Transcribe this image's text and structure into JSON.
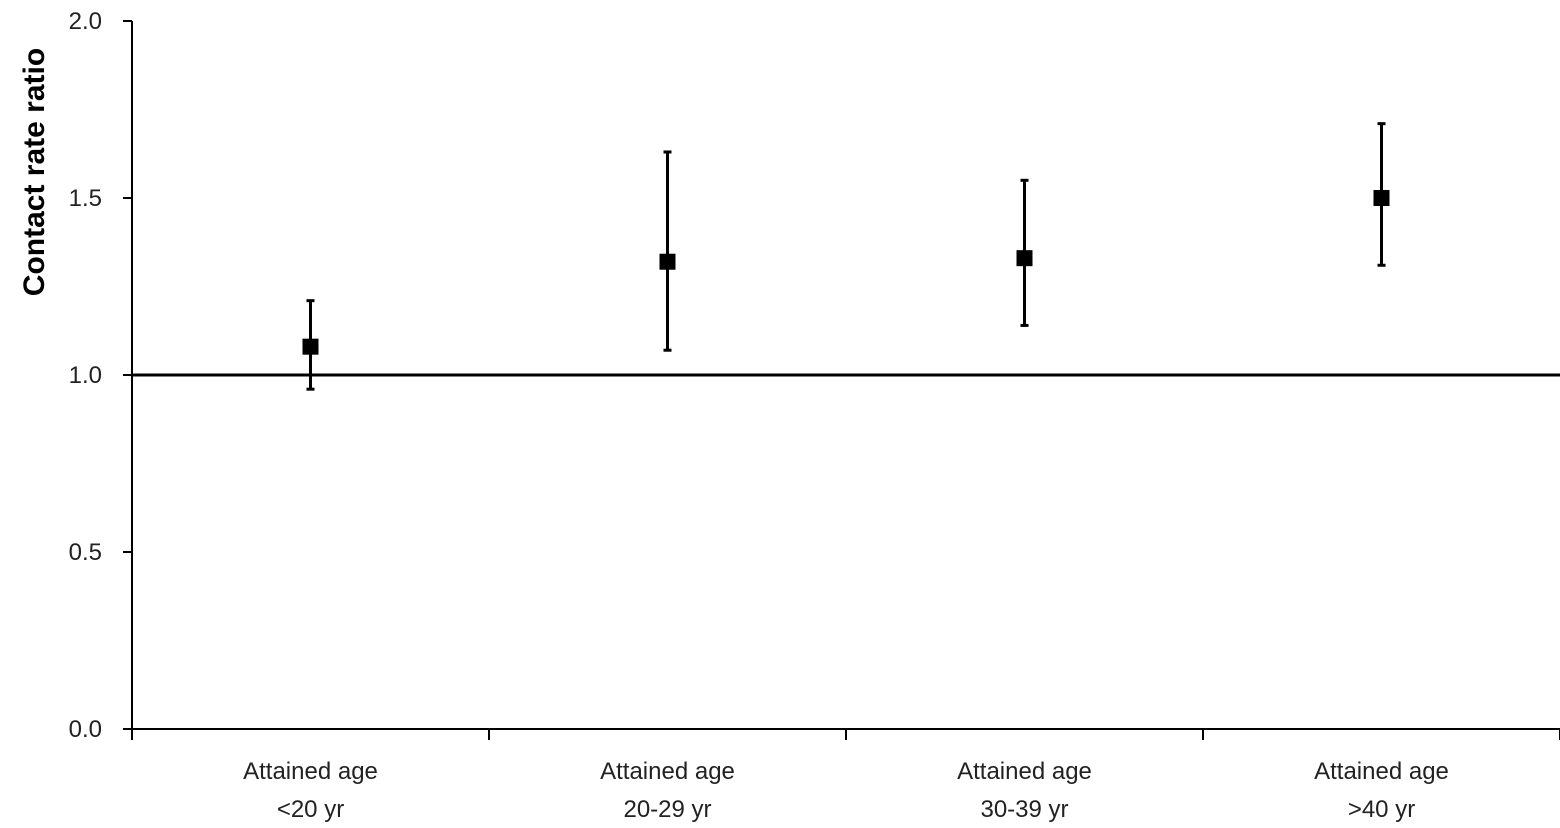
{
  "chart_data": {
    "type": "scatter",
    "title": "",
    "xlabel": "",
    "ylabel": "Contact rate ratio",
    "ylim": [
      0,
      2
    ],
    "y_ticks": [
      "0.0",
      "0.5",
      "1.0",
      "1.5",
      "2.0"
    ],
    "reference_line": 1.0,
    "grid": false,
    "legend": "none",
    "categories": [
      {
        "line1": "Attained age",
        "line2": "<20 yr"
      },
      {
        "line1": "Attained age",
        "line2": "20-29 yr"
      },
      {
        "line1": "Attained age",
        "line2": "30-39 yr"
      },
      {
        "line1": "Attained age",
        "line2": ">40 yr"
      }
    ],
    "points": [
      {
        "value": 1.08,
        "lower": 0.96,
        "upper": 1.21
      },
      {
        "value": 1.32,
        "lower": 1.07,
        "upper": 1.63
      },
      {
        "value": 1.33,
        "lower": 1.14,
        "upper": 1.55
      },
      {
        "value": 1.5,
        "lower": 1.31,
        "upper": 1.71
      }
    ],
    "colors": {
      "marker": "#000000",
      "axis": "#000000"
    }
  }
}
